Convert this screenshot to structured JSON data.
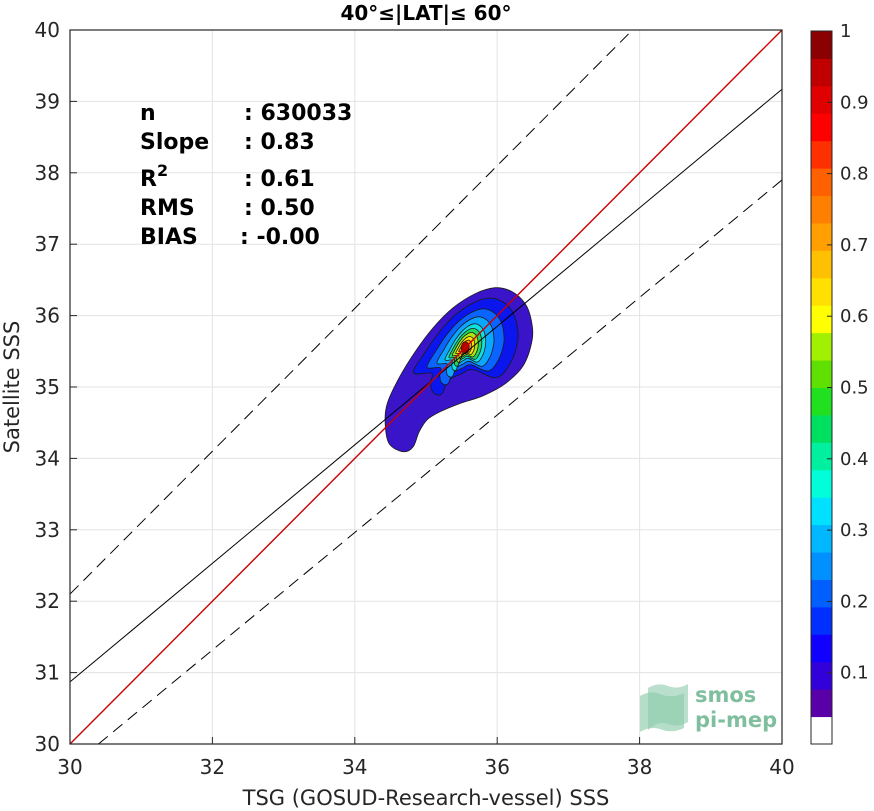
{
  "chart_data": {
    "type": "contour",
    "title": "40°≤|LAT|≤ 60°",
    "xlabel": "TSG (GOSUD-Research-vessel) SSS",
    "ylabel": "Satellite SSS",
    "xlim": [
      30,
      40
    ],
    "ylim": [
      30,
      40
    ],
    "xticks": [
      30,
      32,
      34,
      36,
      38,
      40
    ],
    "yticks": [
      30,
      31,
      32,
      33,
      34,
      35,
      36,
      37,
      38,
      39,
      40
    ],
    "grid": true,
    "stats": [
      {
        "label": "n",
        "value": ": 630033"
      },
      {
        "label": "Slope",
        "value": ": 0.83"
      },
      {
        "label": "R",
        "sup": "2",
        "value": ": 0.61"
      },
      {
        "label": "RMS",
        "value": ": 0.50"
      },
      {
        "label": "BIAS",
        "value": ": -0.00"
      }
    ],
    "lines": {
      "one_to_one": {
        "x": [
          30,
          40
        ],
        "y": [
          30,
          40
        ],
        "color": "#cc0000"
      },
      "regression": {
        "x": [
          30,
          40
        ],
        "y": [
          30.87,
          39.17
        ],
        "color": "#000000"
      },
      "upper_bound": {
        "x": [
          30,
          40
        ],
        "y": [
          32.1,
          42.1
        ],
        "color": "#000000",
        "dash": true
      },
      "lower_bound": {
        "x": [
          30.4,
          40
        ],
        "y": [
          30.0,
          37.9
        ],
        "color": "#000000",
        "dash": true
      }
    },
    "density": {
      "peak_x": 35.55,
      "peak_y": 35.55,
      "levels": [
        0.05,
        0.15,
        0.25,
        0.35,
        0.45,
        0.55,
        0.65,
        0.75,
        0.85,
        0.95
      ],
      "max_value": 1
    },
    "colorbar": {
      "range": [
        0,
        1
      ],
      "ticks": [
        0.1,
        0.2,
        0.3,
        0.4,
        0.5,
        0.6,
        0.7,
        0.8,
        0.9,
        1
      ],
      "tick_labels": [
        "0.1",
        "0.2",
        "0.3",
        "0.4",
        "0.5",
        "0.6",
        "0.7",
        "0.8",
        "0.9",
        "1"
      ],
      "colors": [
        "#ffffff",
        "#5a00a8",
        "#3200d8",
        "#1000ff",
        "#0030ff",
        "#0060ff",
        "#0090ff",
        "#00b8ff",
        "#00e0ff",
        "#00ffd8",
        "#00f0a0",
        "#00e060",
        "#20e020",
        "#60e000",
        "#a0f000",
        "#ffff00",
        "#ffe000",
        "#ffc000",
        "#ffa000",
        "#ff8000",
        "#ff6000",
        "#ff3000",
        "#ff0000",
        "#e00000",
        "#c00000",
        "#8b0000"
      ]
    }
  },
  "logo": {
    "line1": "smos",
    "line2": "pi-mep"
  }
}
